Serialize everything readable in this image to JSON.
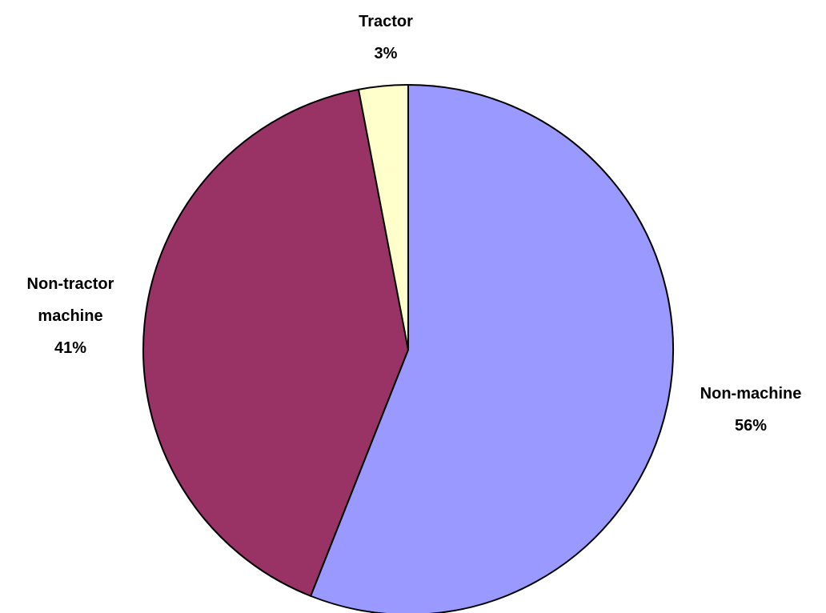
{
  "chart_data": {
    "type": "pie",
    "categories": [
      "Non-machine",
      "Non-tractor machine",
      "Tractor"
    ],
    "values": [
      56,
      41,
      3
    ],
    "value_labels": [
      "56%",
      "41%",
      "3%"
    ],
    "colors": [
      "#9999ff",
      "#993366",
      "#ffffcc"
    ]
  }
}
